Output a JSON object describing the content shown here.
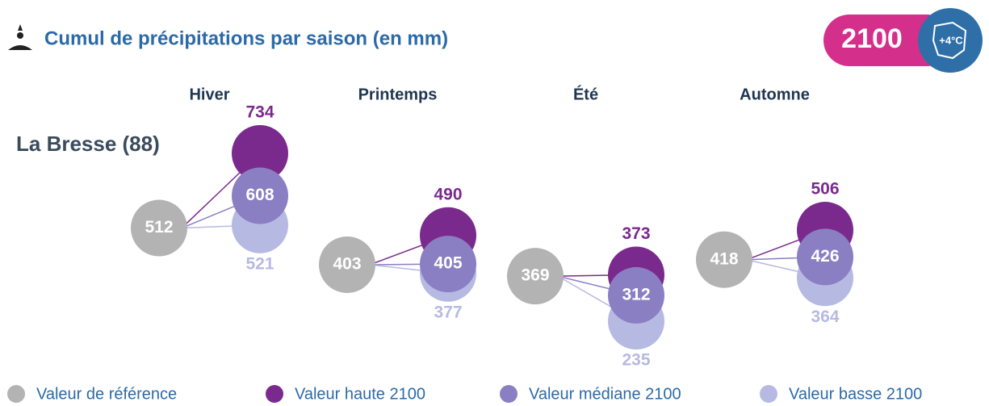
{
  "chart_data": {
    "type": "dot",
    "title": "Cumul de précipitations par saison (en mm)",
    "location": "La Bresse (88)",
    "badge": {
      "year": "2100",
      "warming": "+4°C"
    },
    "categories": [
      "Hiver",
      "Printemps",
      "Été",
      "Automne"
    ],
    "series": [
      {
        "name": "Valeur de référence",
        "color": "#b3b3b3",
        "values": [
          512,
          403,
          369,
          418
        ]
      },
      {
        "name": "Valeur haute 2100",
        "color": "#7a2a8c",
        "values": [
          734,
          490,
          373,
          506
        ]
      },
      {
        "name": "Valeur médiane 2100",
        "color": "#8b7fc3",
        "values": [
          608,
          405,
          312,
          426
        ]
      },
      {
        "name": "Valeur basse 2100",
        "color": "#b6bae3",
        "values": [
          521,
          377,
          235,
          364
        ]
      }
    ]
  }
}
